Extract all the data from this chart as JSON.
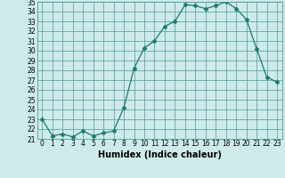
{
  "x": [
    0,
    1,
    2,
    3,
    4,
    5,
    6,
    7,
    8,
    9,
    10,
    11,
    12,
    13,
    14,
    15,
    16,
    17,
    18,
    19,
    20,
    21,
    22,
    23
  ],
  "y": [
    23.0,
    21.3,
    21.5,
    21.2,
    21.8,
    21.3,
    21.6,
    21.8,
    24.2,
    28.2,
    30.3,
    31.0,
    32.5,
    33.0,
    34.7,
    34.6,
    34.3,
    34.6,
    35.0,
    34.3,
    33.2,
    30.2,
    27.3,
    26.8
  ],
  "line_color": "#1a7a6e",
  "marker": "D",
  "marker_size": 2.5,
  "xlabel": "Humidex (Indice chaleur)",
  "ylim": [
    21,
    35
  ],
  "xlim": [
    -0.5,
    23.5
  ],
  "yticks": [
    21,
    22,
    23,
    24,
    25,
    26,
    27,
    28,
    29,
    30,
    31,
    32,
    33,
    34,
    35
  ],
  "xticks": [
    0,
    1,
    2,
    3,
    4,
    5,
    6,
    7,
    8,
    9,
    10,
    11,
    12,
    13,
    14,
    15,
    16,
    17,
    18,
    19,
    20,
    21,
    22,
    23
  ],
  "bg_color": "#ceeaea",
  "grid_color": "#4d9999",
  "tick_fontsize": 5.5,
  "xlabel_fontsize": 7.0
}
